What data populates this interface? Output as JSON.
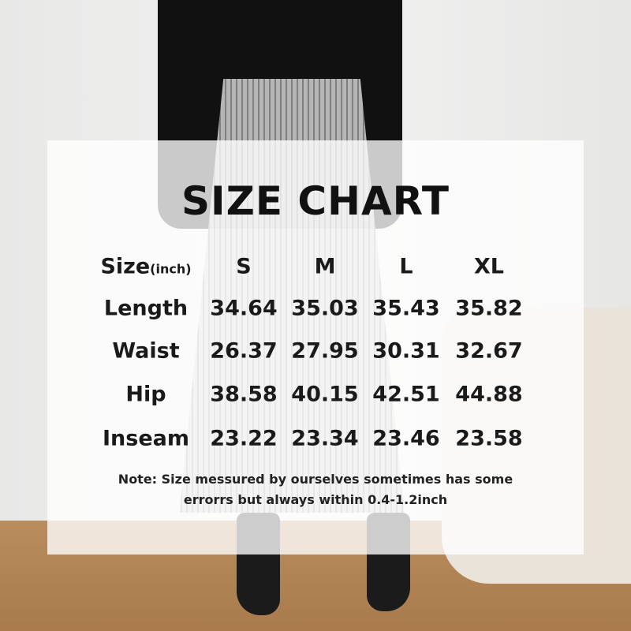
{
  "title": "SIZE CHART",
  "header": {
    "label": "Size",
    "unit": "(inch)",
    "sizes": [
      "S",
      "M",
      "L",
      "XL"
    ]
  },
  "rows": [
    {
      "label": "Length",
      "values": [
        "34.64",
        "35.03",
        "35.43",
        "35.82"
      ]
    },
    {
      "label": "Waist",
      "values": [
        "26.37",
        "27.95",
        "30.31",
        "32.67"
      ]
    },
    {
      "label": "Hip",
      "values": [
        "38.58",
        "40.15",
        "42.51",
        "44.88"
      ]
    },
    {
      "label": "Inseam",
      "values": [
        "23.22",
        "23.34",
        "23.46",
        "23.58"
      ]
    }
  ],
  "note": [
    "Note:  Size messured by ourselves sometimes has some",
    "errorrs but always within 0.4-1.2inch"
  ]
}
